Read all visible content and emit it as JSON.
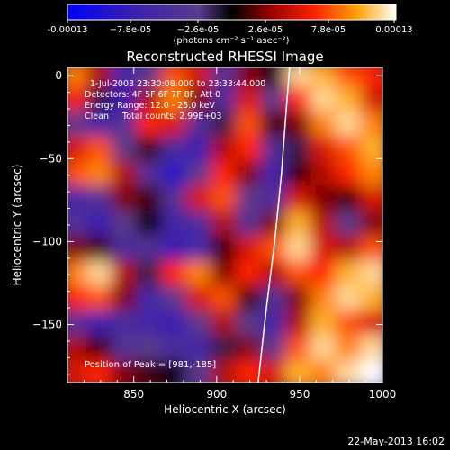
{
  "chart_data": {
    "type": "heatmap",
    "title": "Reconstructed RHESSI Image",
    "xlabel": "Heliocentric X (arcsec)",
    "ylabel": "Heliocentric Y (arcsec)",
    "xlim": [
      810,
      1000
    ],
    "ylim": [
      -185,
      5
    ],
    "xticks": [
      850,
      900,
      950,
      1000
    ],
    "yticks": [
      0,
      -50,
      -100,
      -150
    ],
    "colorbar": {
      "range": [
        -0.00013,
        0.00013
      ],
      "tick_labels": [
        "-0.00013",
        "−7.8e-05",
        "−2.6e-05",
        "2.6e-05",
        "7.8e-05",
        "0.00013"
      ],
      "units": "(photons cm⁻² s⁻¹ asec⁻²)"
    },
    "annotations": [
      "1-Jul-2003 23:30:08.000 to 23:33:44.000",
      "Detectors: 4F 5F 6F 7F 8F, Att 0",
      "Energy Range: 12.0 - 25.0 keV",
      "Clean     Total counts: 2.99E+03"
    ],
    "peak_label": "Position of Peak = [981,-185]",
    "peak": {
      "x": 981,
      "y": -185
    },
    "limb_curve": [
      [
        944,
        5
      ],
      [
        942,
        -20
      ],
      [
        939,
        -60
      ],
      [
        935,
        -100
      ],
      [
        930,
        -140
      ],
      [
        925,
        -185
      ]
    ],
    "intensity_grid": {
      "x": [
        815,
        830,
        845,
        860,
        875,
        890,
        905,
        920,
        935,
        950,
        965,
        980,
        995
      ],
      "y": [
        0,
        -15,
        -30,
        -45,
        -60,
        -75,
        -90,
        -105,
        -120,
        -135,
        -150,
        -165,
        -180
      ],
      "values": [
        [
          0.7,
          0.3,
          -0.5,
          -0.2,
          0.6,
          0.4,
          -0.3,
          0.2,
          0.0,
          0.9,
          0.8,
          0.6,
          0.5
        ],
        [
          0.5,
          -0.1,
          -0.6,
          0.3,
          0.7,
          0.2,
          -0.4,
          0.4,
          -0.2,
          0.5,
          0.9,
          0.8,
          0.4
        ],
        [
          -0.2,
          -0.5,
          -0.3,
          0.5,
          0.4,
          -0.3,
          -0.1,
          0.6,
          0.1,
          0.2,
          0.7,
          0.9,
          0.7
        ],
        [
          0.4,
          0.6,
          -0.2,
          0.1,
          -0.4,
          -0.6,
          0.3,
          0.5,
          -0.3,
          -0.1,
          0.4,
          0.6,
          0.8
        ],
        [
          0.6,
          0.7,
          0.3,
          -0.3,
          -0.7,
          -0.2,
          0.5,
          0.2,
          -0.5,
          0.1,
          0.3,
          0.5,
          0.7
        ],
        [
          -0.5,
          -0.3,
          0.2,
          0.1,
          -0.3,
          0.4,
          0.6,
          -0.2,
          -0.4,
          0.4,
          0.2,
          0.1,
          0.4
        ],
        [
          -0.3,
          -0.6,
          -0.2,
          0.0,
          -0.5,
          -0.4,
          0.3,
          -0.3,
          0.2,
          0.8,
          0.3,
          -0.2,
          0.2
        ],
        [
          0.2,
          0.1,
          -0.4,
          -0.3,
          -0.6,
          -0.5,
          0.1,
          0.4,
          0.6,
          0.9,
          0.4,
          0.3,
          0.6
        ],
        [
          0.7,
          0.9,
          0.3,
          -0.1,
          0.5,
          0.7,
          0.2,
          0.5,
          0.3,
          0.6,
          0.5,
          0.8,
          0.9
        ],
        [
          0.5,
          0.6,
          0.2,
          -0.5,
          -0.2,
          0.4,
          0.6,
          0.1,
          -0.3,
          0.2,
          0.7,
          0.9,
          0.8
        ],
        [
          -0.3,
          -0.6,
          -0.4,
          -0.5,
          -0.6,
          -0.2,
          0.3,
          -0.2,
          -0.5,
          0.3,
          0.8,
          0.6,
          0.4
        ],
        [
          0.3,
          0.1,
          -0.3,
          -0.2,
          -0.4,
          -0.5,
          -0.1,
          0.2,
          -0.2,
          0.6,
          0.9,
          0.7,
          0.9
        ],
        [
          0.4,
          0.5,
          0.2,
          0.1,
          0.0,
          -0.2,
          0.3,
          0.5,
          0.4,
          0.8,
          0.7,
          0.9,
          1.0
        ]
      ]
    }
  },
  "footer": {
    "date": "22-May-2013 16:02"
  }
}
